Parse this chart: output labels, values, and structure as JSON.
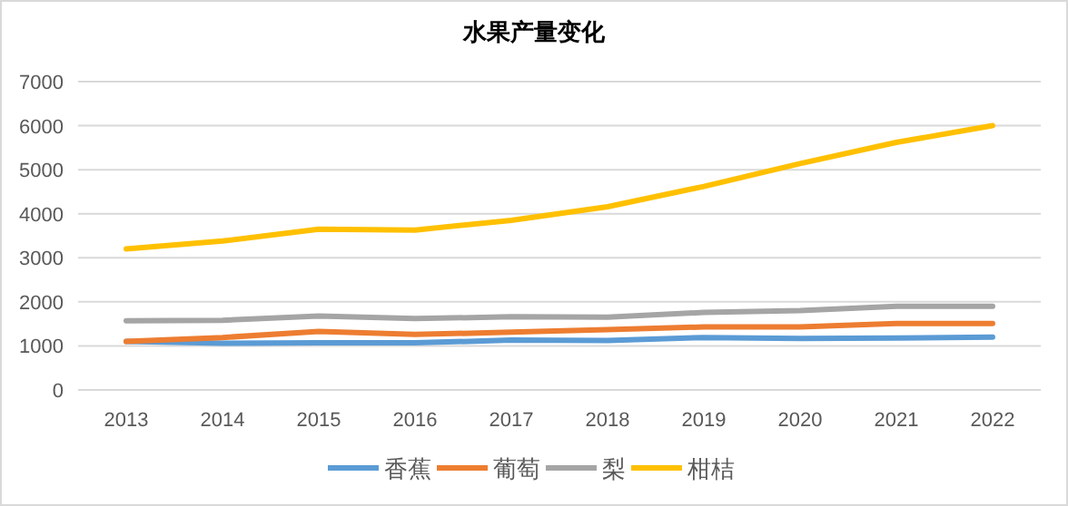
{
  "chart_data": {
    "type": "line",
    "title": "水果产量变化",
    "categories": [
      "2013",
      "2014",
      "2015",
      "2016",
      "2017",
      "2018",
      "2019",
      "2020",
      "2021",
      "2022"
    ],
    "series": [
      {
        "name": "香蕉",
        "color": "#5b9bd5",
        "values": [
          1100,
          1060,
          1070,
          1070,
          1130,
          1120,
          1190,
          1170,
          1180,
          1200
        ]
      },
      {
        "name": "葡萄",
        "color": "#ed7d31",
        "values": [
          1100,
          1190,
          1330,
          1260,
          1310,
          1370,
          1430,
          1430,
          1510,
          1510
        ]
      },
      {
        "name": "梨",
        "color": "#a5a5a5",
        "values": [
          1570,
          1580,
          1680,
          1620,
          1660,
          1650,
          1760,
          1800,
          1900,
          1900
        ]
      },
      {
        "name": "柑桔",
        "color": "#ffc000",
        "values": [
          3200,
          3380,
          3650,
          3630,
          3850,
          4160,
          4620,
          5140,
          5620,
          6000
        ]
      }
    ],
    "ylim": [
      0,
      7000
    ],
    "yticks": [
      0,
      1000,
      2000,
      3000,
      4000,
      5000,
      6000,
      7000
    ],
    "grid": "y",
    "legend": "bottom",
    "marker": "none",
    "line_style": "solid"
  }
}
